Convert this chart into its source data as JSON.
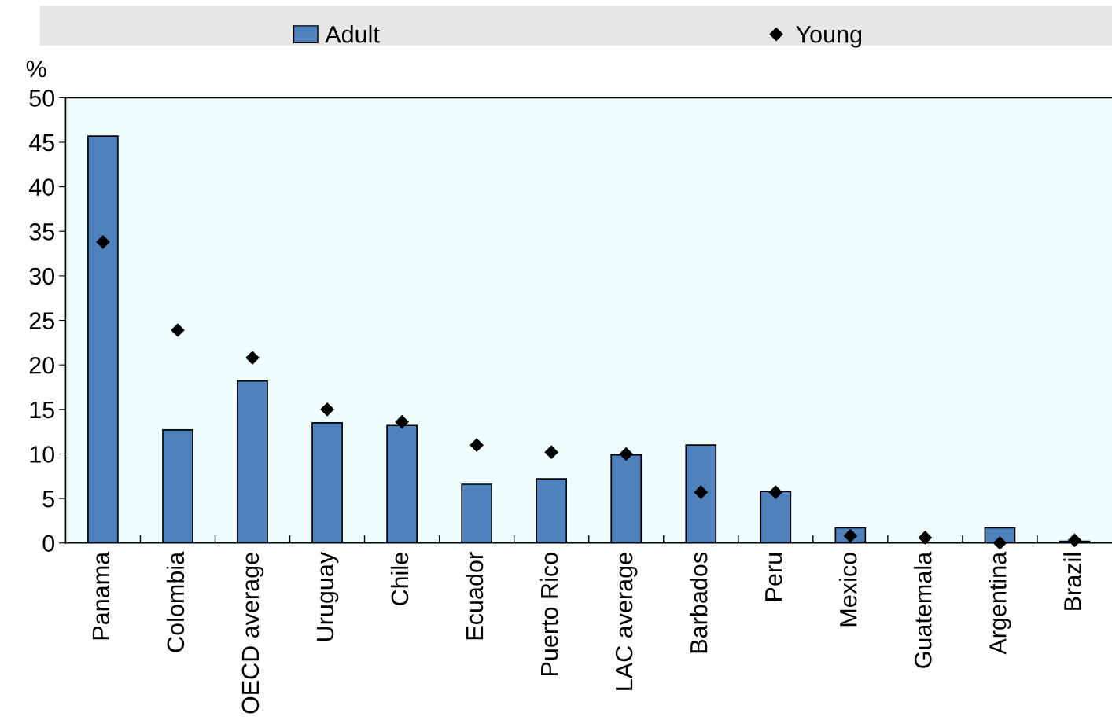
{
  "chart_data": {
    "type": "bar",
    "categories": [
      "Panama",
      "Colombia",
      "OECD average",
      "Uruguay",
      "Chile",
      "Ecuador",
      "Puerto Rico",
      "LAC average",
      "Barbados",
      "Peru",
      "Mexico",
      "Guatemala",
      "Argentina",
      "Brazil"
    ],
    "series": [
      {
        "name": "Adult",
        "color": "#4f81bd",
        "values": [
          45.7,
          12.7,
          18.2,
          13.5,
          13.2,
          6.6,
          7.2,
          9.9,
          11.0,
          5.8,
          1.7,
          null,
          1.7,
          0.2
        ]
      },
      {
        "name": "Young",
        "type": "scatter",
        "color": "#000000",
        "marker": "diamond",
        "values": [
          33.8,
          23.9,
          20.8,
          15.0,
          13.6,
          11.0,
          10.2,
          10.0,
          5.7,
          5.7,
          0.8,
          0.6,
          0.0,
          0.3
        ]
      }
    ],
    "ylabel": "%",
    "ylim": [
      0,
      50
    ],
    "yticks": [
      0,
      5,
      10,
      15,
      20,
      25,
      30,
      35,
      40,
      45,
      50
    ],
    "grid": false,
    "legend": "top"
  }
}
